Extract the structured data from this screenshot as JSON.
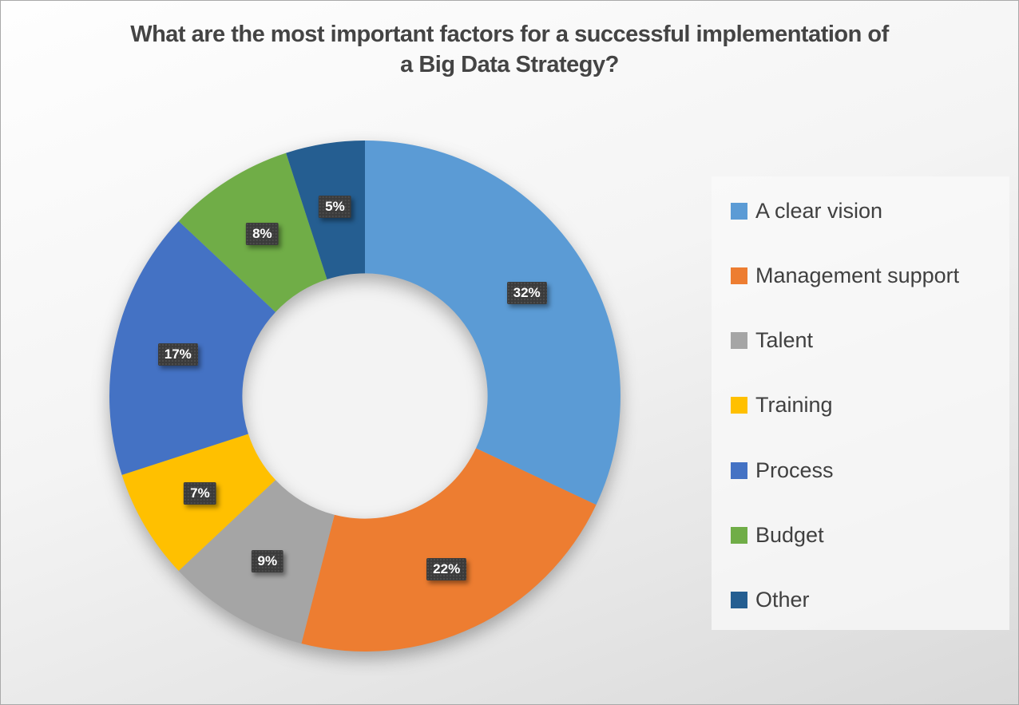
{
  "title": {
    "line1": "What are the most important factors for a successful implementation of",
    "line2": "a Big Data Strategy?"
  },
  "chart_data": {
    "type": "pie",
    "subtype": "donut",
    "title": "What are the most important factors for a successful implementation of a Big Data Strategy?",
    "categories": [
      "A clear vision",
      "Management support",
      "Talent",
      "Training",
      "Process",
      "Budget",
      "Other"
    ],
    "values": [
      32,
      22,
      9,
      7,
      17,
      8,
      5
    ],
    "unit": "%",
    "labels": [
      "32%",
      "22%",
      "9%",
      "7%",
      "17%",
      "8%",
      "5%"
    ],
    "colors": [
      "#5B9BD5",
      "#ED7D31",
      "#A5A5A5",
      "#FFC000",
      "#4472C4",
      "#70AD47",
      "#255E91"
    ],
    "start_angle_deg": 0,
    "direction": "clockwise",
    "donut_hole_ratio": 0.48,
    "hole_fill": "#F3F3F3",
    "data_label_bg": "#3B3B3B",
    "data_label_text": "#FFFFFF",
    "legend_position": "right",
    "legend_text_color": "#404040",
    "title_color": "#444444"
  }
}
